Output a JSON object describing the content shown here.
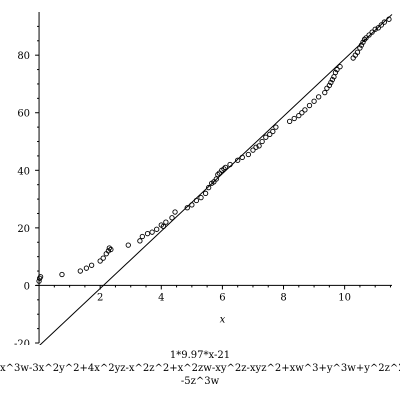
{
  "chart_data": {
    "type": "scatter",
    "xlabel": "x",
    "ylabel": "",
    "xlim": [
      -0.1,
      11.55
    ],
    "ylim": [
      -20,
      95
    ],
    "x_ticks": [
      2,
      4,
      6,
      8,
      10
    ],
    "y_ticks": [
      -20,
      0,
      20,
      40,
      60,
      80
    ],
    "grid": false,
    "legend": "none",
    "fit_line": {
      "slope": 9.97,
      "intercept": -21,
      "label": "1*9.97*x-21"
    },
    "series": [
      {
        "marker": "open-circle",
        "x": [
          0.0,
          0.02,
          0.05,
          0.75,
          1.35,
          1.55,
          1.72,
          2.0,
          2.1,
          2.2,
          2.27,
          2.3,
          2.35,
          2.92,
          3.3,
          3.38,
          3.55,
          3.7,
          3.85,
          4.0,
          4.07,
          4.15,
          4.35,
          4.45,
          4.85,
          5.0,
          5.15,
          5.3,
          5.45,
          5.55,
          5.65,
          5.72,
          5.8,
          5.85,
          5.9,
          5.98,
          6.05,
          6.1,
          6.25,
          6.5,
          6.65,
          6.85,
          7.0,
          7.1,
          7.2,
          7.3,
          7.42,
          7.55,
          7.65,
          7.75,
          8.2,
          8.35,
          8.5,
          8.6,
          8.7,
          8.85,
          9.0,
          9.15,
          9.35,
          9.42,
          9.5,
          9.55,
          9.6,
          9.65,
          9.7,
          9.75,
          9.85,
          10.28,
          10.35,
          10.42,
          10.5,
          10.55,
          10.6,
          10.65,
          10.7,
          10.8,
          10.9,
          11.0,
          11.1,
          11.2,
          11.3,
          11.45
        ],
        "y": [
          1.5,
          2.5,
          3.0,
          3.8,
          5.0,
          6.0,
          7.0,
          8.5,
          9.5,
          11.0,
          12.0,
          13.0,
          12.5,
          14.0,
          15.5,
          17.0,
          18.0,
          18.5,
          19.5,
          21.0,
          20.5,
          22.0,
          23.5,
          25.5,
          27.0,
          28.0,
          29.5,
          30.5,
          32.0,
          34.0,
          35.5,
          36.0,
          37.0,
          38.5,
          39.0,
          40.0,
          40.5,
          41.0,
          42.0,
          43.5,
          44.5,
          45.5,
          47.0,
          48.0,
          48.5,
          50.0,
          51.5,
          52.5,
          53.5,
          55.0,
          57.0,
          58.0,
          59.0,
          60.0,
          61.0,
          62.5,
          64.0,
          65.5,
          67.0,
          68.5,
          69.5,
          70.5,
          71.5,
          72.5,
          74.0,
          75.0,
          76.0,
          79.0,
          80.0,
          81.0,
          82.5,
          83.5,
          84.5,
          85.5,
          86.0,
          87.0,
          88.0,
          89.0,
          89.5,
          90.5,
          91.5,
          92.5
        ]
      }
    ],
    "caption_lines": [
      "1*9.97*x-21",
      "x^3w-3x^2y^2+4x^2yz-x^2z^2+x^2zw-xy^2z-xyz^2+xw^3+y^3w+y^2z^2",
      "-5z^3w"
    ]
  }
}
